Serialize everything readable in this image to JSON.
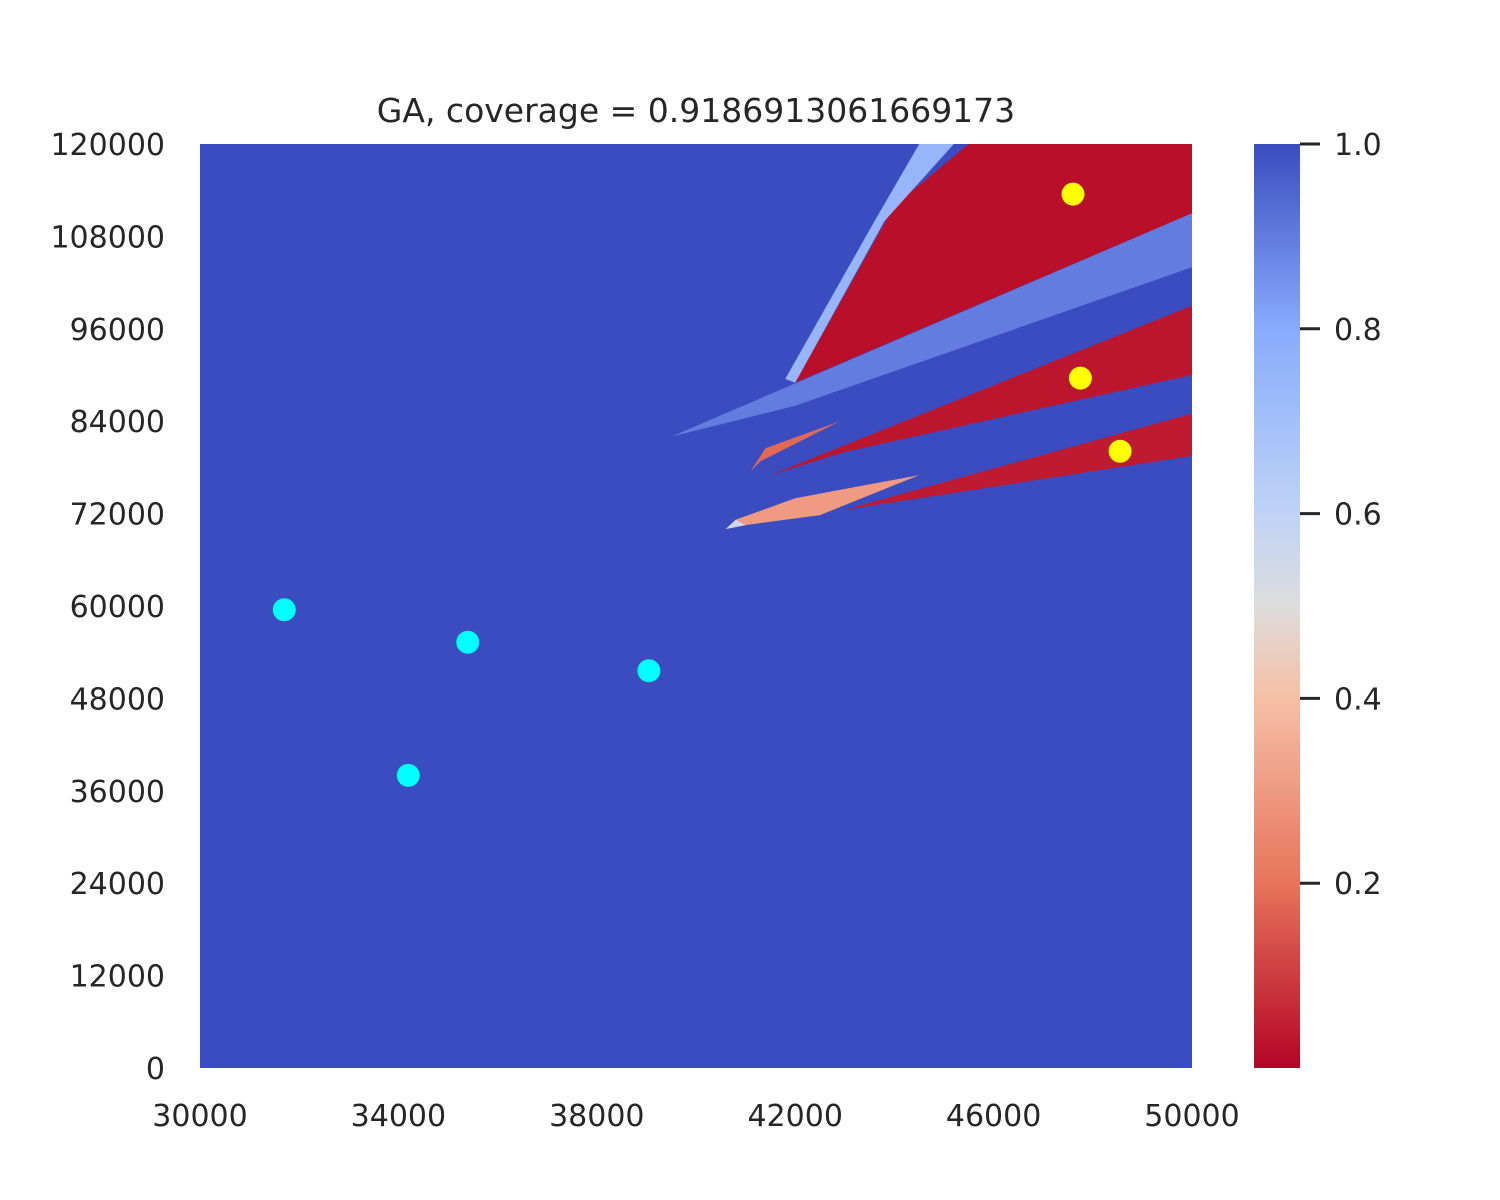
{
  "chart_data": {
    "type": "heatmap",
    "title": "GA, coverage = 0.9186913061669173",
    "xlabel": "",
    "ylabel": "",
    "xlim": [
      30000,
      50000
    ],
    "ylim": [
      0,
      120000
    ],
    "x_ticks": [
      "30000",
      "34000",
      "38000",
      "42000",
      "46000",
      "50000"
    ],
    "y_ticks": [
      "0",
      "12000",
      "24000",
      "36000",
      "48000",
      "60000",
      "72000",
      "84000",
      "96000",
      "108000",
      "120000"
    ],
    "colormap": "coolwarm_r",
    "colorbar": {
      "range": [
        0.0,
        1.0
      ],
      "ticks": [
        "0.2",
        "0.4",
        "0.6",
        "0.8",
        "1.0"
      ],
      "stops": [
        {
          "value": 0.0,
          "color": "#b40426"
        },
        {
          "value": 0.2,
          "color": "#e7745b"
        },
        {
          "value": 0.4,
          "color": "#f6bfa6"
        },
        {
          "value": 0.5,
          "color": "#dddcdc"
        },
        {
          "value": 0.6,
          "color": "#bfd3f6"
        },
        {
          "value": 0.8,
          "color": "#88abfd"
        },
        {
          "value": 1.0,
          "color": "#3b4cc0"
        }
      ]
    },
    "background_value": 1.0,
    "regions": [
      {
        "name": "top-red-wedge",
        "value": 0.02,
        "points": [
          [
            42000,
            89000
          ],
          [
            44000,
            112000
          ],
          [
            45500,
            120000
          ],
          [
            50000,
            120000
          ],
          [
            50000,
            111000
          ]
        ]
      },
      {
        "name": "light-blue-strip-top",
        "value": 0.75,
        "points": [
          [
            44500,
            120000
          ],
          [
            45200,
            120000
          ],
          [
            43800,
            110000
          ],
          [
            42000,
            89000
          ],
          [
            41800,
            89500
          ],
          [
            43600,
            110000
          ]
        ]
      },
      {
        "name": "blue-band-1",
        "value": 0.9,
        "points": [
          [
            39500,
            82000
          ],
          [
            50000,
            111000
          ],
          [
            50000,
            104000
          ],
          [
            42000,
            86000
          ]
        ]
      },
      {
        "name": "middle-red-wedge",
        "value": 0.03,
        "points": [
          [
            41500,
            77000
          ],
          [
            50000,
            99000
          ],
          [
            50000,
            90000
          ],
          [
            43000,
            80000
          ]
        ]
      },
      {
        "name": "lower-red-wedge",
        "value": 0.04,
        "points": [
          [
            43000,
            72500
          ],
          [
            50000,
            85000
          ],
          [
            50000,
            79500
          ]
        ]
      },
      {
        "name": "small-orange-sliver",
        "value": 0.18,
        "points": [
          [
            41100,
            77500
          ],
          [
            41400,
            80500
          ],
          [
            42900,
            84000
          ],
          [
            41300,
            78800
          ]
        ]
      },
      {
        "name": "peach-sliver",
        "value": 0.3,
        "points": [
          [
            40600,
            70000
          ],
          [
            40800,
            71200
          ],
          [
            42000,
            74000
          ],
          [
            44500,
            77000
          ],
          [
            42500,
            71800
          ],
          [
            41000,
            70500
          ]
        ]
      },
      {
        "name": "light-sliver-tip",
        "value": 0.55,
        "points": [
          [
            40600,
            70000
          ],
          [
            40800,
            71200
          ],
          [
            41000,
            70500
          ]
        ]
      }
    ],
    "series": [
      {
        "name": "cyan-points",
        "color": "#00ffff",
        "points": [
          [
            31700,
            59500
          ],
          [
            34200,
            38000
          ],
          [
            35400,
            55300
          ],
          [
            39050,
            51600
          ]
        ]
      },
      {
        "name": "yellow-points",
        "color": "#ffff00",
        "points": [
          [
            47600,
            113500
          ],
          [
            47750,
            89600
          ],
          [
            48550,
            80100
          ]
        ]
      }
    ]
  }
}
